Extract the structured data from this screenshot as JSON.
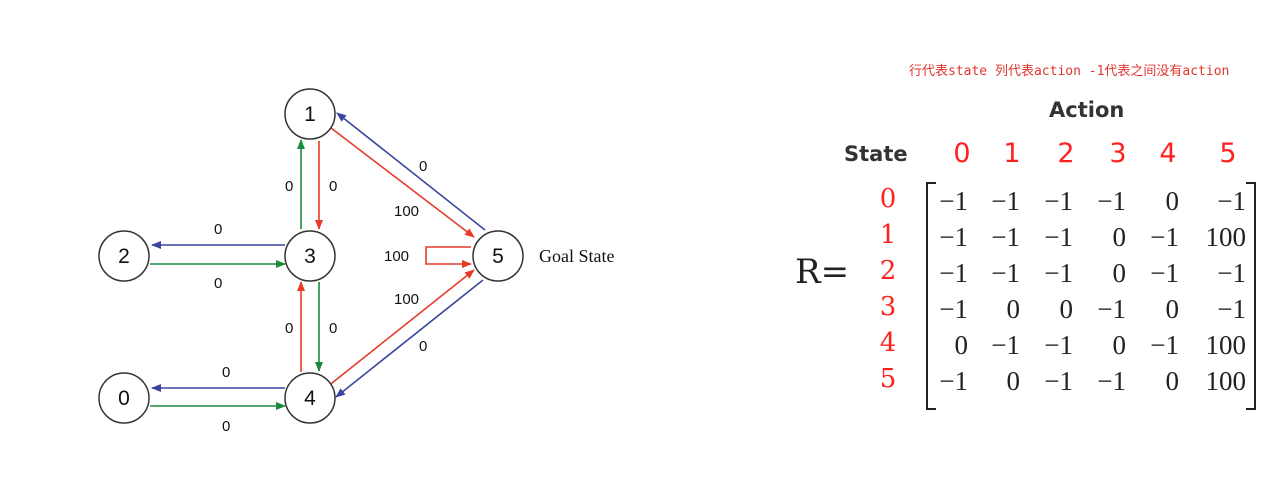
{
  "note": "行代表state 列代表action -1代表之间没有action",
  "graph": {
    "nodes": [
      "0",
      "1",
      "2",
      "3",
      "4",
      "5"
    ],
    "goal_label": "Goal State",
    "edges": [
      {
        "from": "3",
        "to": "1",
        "label": "0",
        "color": "#1b8a3e"
      },
      {
        "from": "1",
        "to": "3",
        "label": "0",
        "color": "#e83a2a"
      },
      {
        "from": "3",
        "to": "2",
        "label": "0",
        "color": "#3a45a0"
      },
      {
        "from": "2",
        "to": "3",
        "label": "0",
        "color": "#1b8a3e"
      },
      {
        "from": "4",
        "to": "3",
        "label": "0",
        "color": "#e83a2a"
      },
      {
        "from": "3",
        "to": "4",
        "label": "0",
        "color": "#1b8a3e"
      },
      {
        "from": "4",
        "to": "0",
        "label": "0",
        "color": "#3a45a0"
      },
      {
        "from": "0",
        "to": "4",
        "label": "0",
        "color": "#1b8a3e"
      },
      {
        "from": "5",
        "to": "1",
        "label": "0",
        "color": "#3a45a0"
      },
      {
        "from": "1",
        "to": "5",
        "label": "100",
        "color": "#e83a2a"
      },
      {
        "from": "5",
        "to": "5",
        "label": "100",
        "color": "#e83a2a"
      },
      {
        "from": "4",
        "to": "5",
        "label": "100",
        "color": "#e83a2a"
      },
      {
        "from": "5",
        "to": "4",
        "label": "0",
        "color": "#3a45a0"
      }
    ]
  },
  "matrix": {
    "action_title": "Action",
    "state_title": "State",
    "lhs": "R=",
    "col_headers": [
      "0",
      "1",
      "2",
      "3",
      "4",
      "5"
    ],
    "row_headers": [
      "0",
      "1",
      "2",
      "3",
      "4",
      "5"
    ],
    "rows": [
      [
        "−1",
        "−1",
        "−1",
        "−1",
        "0",
        "−1"
      ],
      [
        "−1",
        "−1",
        "−1",
        "0",
        "−1",
        "100"
      ],
      [
        "−1",
        "−1",
        "−1",
        "0",
        "−1",
        "−1"
      ],
      [
        "−1",
        "0",
        "0",
        "−1",
        "0",
        "−1"
      ],
      [
        "0",
        "−1",
        "−1",
        "0",
        "−1",
        "100"
      ],
      [
        "−1",
        "0",
        "−1",
        "−1",
        "0",
        "100"
      ]
    ]
  },
  "colors": {
    "accent_red": "#ff2020",
    "edge_green": "#1b8a3e",
    "edge_red": "#e83a2a",
    "edge_blue": "#3a45a0"
  }
}
